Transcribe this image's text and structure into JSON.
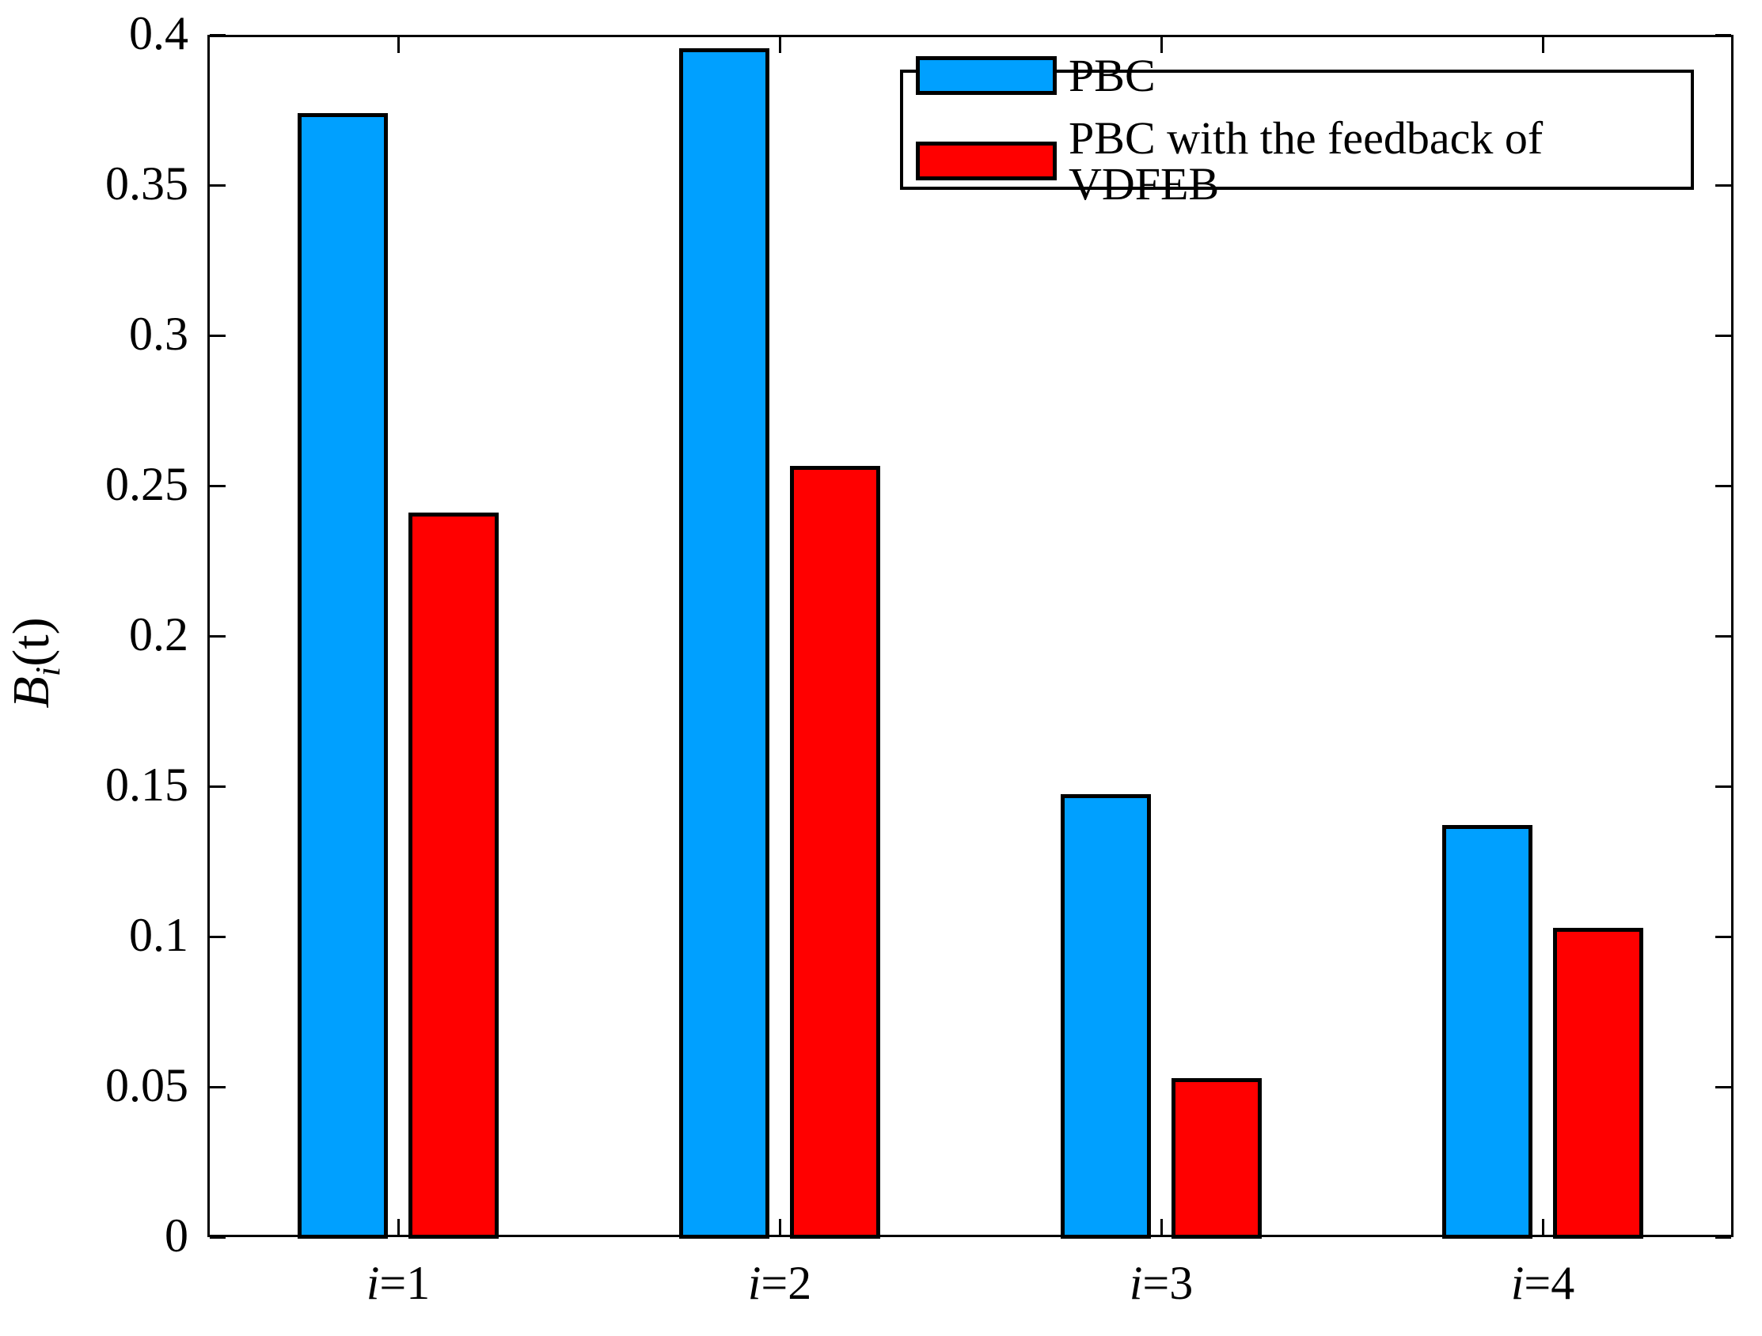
{
  "chart_data": {
    "type": "bar",
    "title": "",
    "xlabel": "",
    "ylabel": {
      "base": "B",
      "sub": "i",
      "suffix": "(t)"
    },
    "categories": [
      "i=1",
      "i=2",
      "i=3",
      "i=4"
    ],
    "series": [
      {
        "name": "PBC",
        "color": "#00A0FF",
        "values": [
          0.374,
          0.3955,
          0.1475,
          0.137
        ]
      },
      {
        "name": "PBC with the feedback of VDFEB",
        "color": "#FF0000",
        "values": [
          0.241,
          0.2565,
          0.053,
          0.103
        ]
      }
    ],
    "ylim": [
      0,
      0.4
    ],
    "ytick_step": 0.05,
    "ytick_labels": [
      "0",
      "0.05",
      "0.1",
      "0.15",
      "0.2",
      "0.25",
      "0.3",
      "0.35",
      "0.4"
    ],
    "grid": false,
    "legend_position": "top-right",
    "bar_edge_color": "#000000",
    "axis_color": "#000000",
    "background_color": "#ffffff"
  }
}
